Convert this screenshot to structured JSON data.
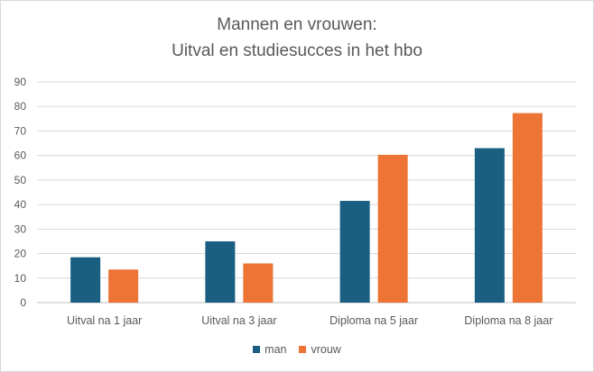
{
  "chart_data": {
    "type": "bar",
    "title_lines": [
      "Mannen en vrouwen:",
      "Uitval en studiesucces in het hbo"
    ],
    "categories": [
      "Uitval na 1 jaar",
      "Uitval na 3 jaar",
      "Diploma na 5 jaar",
      "Diploma na 8 jaar"
    ],
    "series": [
      {
        "name": "man",
        "color": "#1a5f82",
        "values": [
          18.5,
          25,
          41.5,
          63
        ]
      },
      {
        "name": "vrouw",
        "color": "#ed7434",
        "values": [
          13.5,
          16,
          60.3,
          77.3
        ]
      }
    ],
    "ylim": [
      0,
      90
    ],
    "yticks": [
      0,
      10,
      20,
      30,
      40,
      50,
      60,
      70,
      80,
      90
    ],
    "grid": true,
    "legend_position": "bottom"
  }
}
